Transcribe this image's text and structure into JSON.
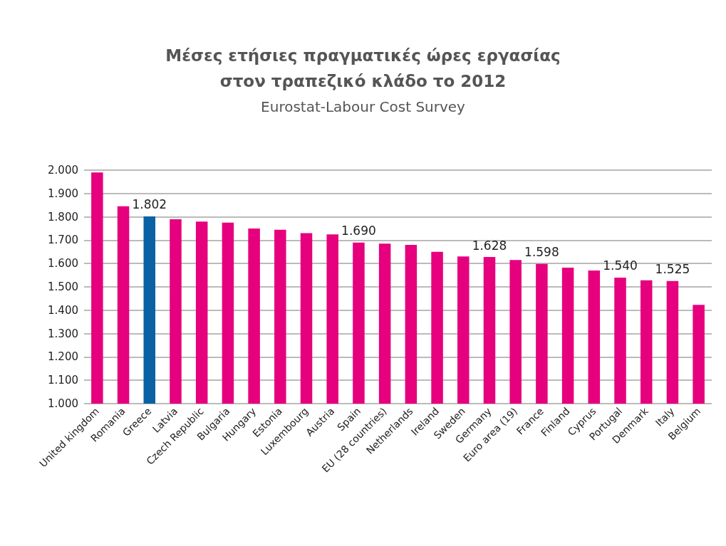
{
  "chart_data": {
    "type": "bar",
    "title": "Μέσες ετήσιες πραγματικές ώρες εργασίας\nστον τραπεζικό κλάδο το 2012",
    "subtitle": "Eurostat-Labour Cost Survey",
    "categories": [
      "United kingdom",
      "Romania",
      "Greece",
      "Latvia",
      "Czech Republic",
      "Bulgaria",
      "Hungary",
      "Estonia",
      "Luxembourg",
      "Austria",
      "Spain",
      "EU (28 countries)",
      "Netherlands",
      "Ireland",
      "Sweden",
      "Germany",
      "Euro area (19)",
      "France",
      "Finland",
      "Cyprus",
      "Portugal",
      "Denmark",
      "Italy",
      "Belgium"
    ],
    "values": [
      1990,
      1845,
      1802,
      1790,
      1780,
      1775,
      1750,
      1745,
      1730,
      1725,
      1690,
      1685,
      1680,
      1650,
      1630,
      1628,
      1615,
      1598,
      1582,
      1570,
      1540,
      1528,
      1525,
      1423
    ],
    "value_labels": [
      null,
      null,
      "1.802",
      null,
      null,
      null,
      null,
      null,
      null,
      null,
      "1.690",
      null,
      null,
      null,
      null,
      "1.628",
      null,
      "1.598",
      null,
      null,
      "1.540",
      null,
      "1.525",
      null
    ],
    "colors": [
      "#e6007e",
      "#e6007e",
      "#0a62a4",
      "#e6007e",
      "#e6007e",
      "#e6007e",
      "#e6007e",
      "#e6007e",
      "#e6007e",
      "#e6007e",
      "#e6007e",
      "#e6007e",
      "#e6007e",
      "#e6007e",
      "#e6007e",
      "#e6007e",
      "#e6007e",
      "#e6007e",
      "#e6007e",
      "#e6007e",
      "#e6007e",
      "#e6007e",
      "#e6007e",
      "#e6007e"
    ],
    "ylim": [
      1000,
      2000
    ],
    "yticks": [
      {
        "value": 1000,
        "label": "1.000"
      },
      {
        "value": 1100,
        "label": "1.100"
      },
      {
        "value": 1200,
        "label": "1.200"
      },
      {
        "value": 1300,
        "label": "1.300"
      },
      {
        "value": 1400,
        "label": "1.400"
      },
      {
        "value": 1500,
        "label": "1.500"
      },
      {
        "value": 1600,
        "label": "1.600"
      },
      {
        "value": 1700,
        "label": "1.700"
      },
      {
        "value": 1800,
        "label": "1.800"
      },
      {
        "value": 1900,
        "label": "1.900"
      },
      {
        "value": 2000,
        "label": "2.000"
      }
    ],
    "grid": "y"
  }
}
